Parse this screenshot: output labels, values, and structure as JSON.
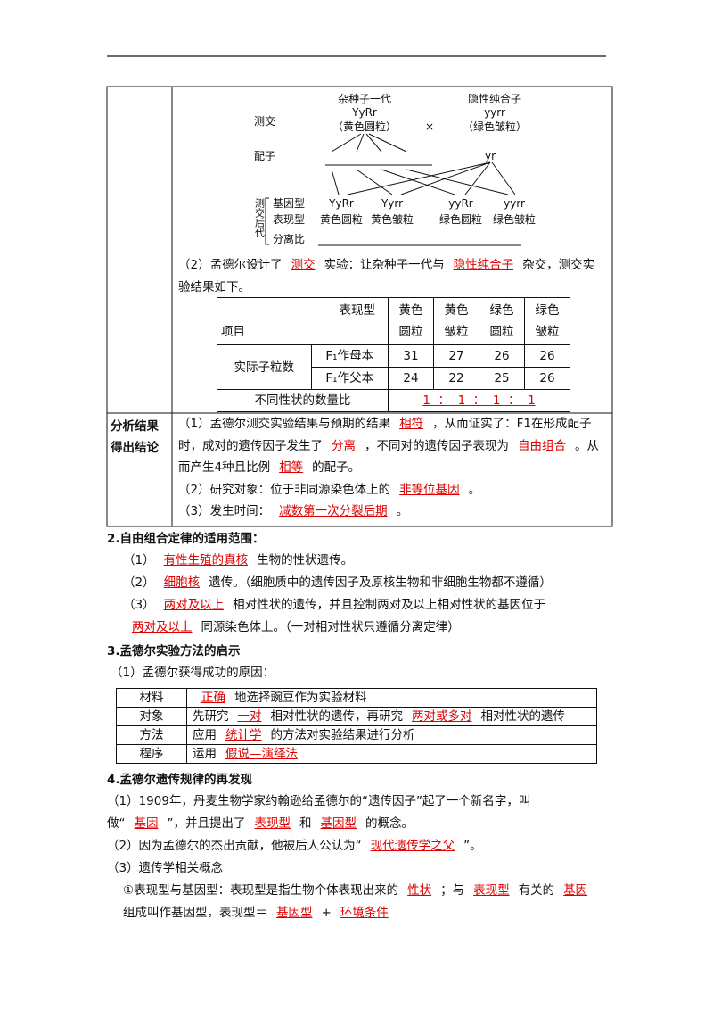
{
  "diagram": {
    "hybrid_label": "杂种子一代",
    "hybrid_genotype": "YyRr",
    "hybrid_phenotype": "（黄色圆粒）",
    "cross_sign": "×",
    "recessive_label": "隐性纯合子",
    "recessive_genotype": "yyrr",
    "recessive_phenotype": "（绿色皱粒）",
    "testcross_label": "测交",
    "gamete_label": "配子",
    "recessive_gamete": "yr",
    "offspring_label": "测交后代",
    "row_labels": [
      "基因型",
      "表现型",
      "分离比"
    ],
    "genotypes": [
      "YyRr",
      "Yyrr",
      "yyRr",
      "yyrr"
    ],
    "phenotypes": [
      "黄色圆粒",
      "黄色皱粒",
      "绿色圆粒",
      "绿色皱粒"
    ]
  },
  "experiment": {
    "paragraph": [
      "（2）孟德尔设计了",
      {
        "answer": "测交"
      },
      "实验：让杂种子一代与",
      {
        "answer": "隐性纯合子"
      },
      "杂交，测交实验结果如下。"
    ],
    "table": {
      "header_top": "表现型",
      "header_left": "项目",
      "phenotypes": [
        "黄色圆粒",
        "黄色皱粒",
        "绿色圆粒",
        "绿色皱粒"
      ],
      "row_label": "实际子粒数",
      "rows": [
        {
          "label": "F₁作母本",
          "values": [
            31,
            27,
            26,
            26
          ]
        },
        {
          "label": "F₁作父本",
          "values": [
            24,
            22,
            25,
            26
          ]
        }
      ],
      "ratio_label": "不同性状的数量比",
      "ratio": {
        "answer": "1  ：  1  ：  1  ：  1"
      }
    }
  },
  "analysis": {
    "label": "分析结果得出结论",
    "paragraphs": [
      [
        "（1）孟德尔测交实验结果与预期的结果",
        {
          "answer": "相符"
        },
        "，从而证实了：F1在形成配子时，成对的遗传因子发生了",
        {
          "answer": "分离"
        },
        "，不同对的遗传因子表现为",
        {
          "answer": "自由组合"
        },
        "。从而产生4种且比例",
        {
          "answer": "相等"
        },
        "的配子。"
      ],
      [
        "（2）研究对象：位于非同源染色体上的",
        {
          "answer": "非等位基因"
        },
        "。"
      ],
      [
        "（3）发生时间：",
        {
          "answer": "减数第一次分裂后期"
        },
        "。"
      ]
    ]
  },
  "sections": [
    {
      "title": "2.自由组合定律的适用范围：",
      "paragraphs": [
        [
          "（1）",
          {
            "answer": "有性生殖的真核"
          },
          "生物的性状遗传。"
        ],
        [
          "（2）",
          {
            "answer": "细胞核"
          },
          "遗传。（细胞质中的遗传因子及原核生物和非细胞生物都不遵循）"
        ],
        [
          "（3）",
          {
            "answer": "两对及以上"
          },
          "相对性状的遗传，并且控制两对及以上相对性状的基因位于",
          {
            "answer": "两对及以上"
          },
          "同源染色体上。（一对相对性状只遵循分离定律）"
        ]
      ]
    },
    {
      "title": "3.孟德尔实验方法的启示",
      "paragraphs": [
        [
          "（1）孟德尔获得成功的原因："
        ]
      ],
      "table": [
        {
          "label": "材料",
          "content": [
            {
              "answer": "正确"
            },
            "地选择豌豆作为实验材料"
          ]
        },
        {
          "label": "对象",
          "content": [
            "先研究",
            {
              "answer": "一对"
            },
            "相对性状的遗传，再研究",
            {
              "answer": "两对或多对"
            },
            "相对性状的遗传"
          ]
        },
        {
          "label": "方法",
          "content": [
            "应用",
            {
              "answer": "统计学"
            },
            "的方法对实验结果进行分析"
          ]
        },
        {
          "label": "程序",
          "content": [
            "运用",
            {
              "answer": "假说—演绎法"
            }
          ]
        }
      ]
    },
    {
      "title": "4.孟德尔遗传规律的再发现",
      "paragraphs": [
        [
          "（1）1909年，丹麦生物学家约翰逊给孟德尔的“遗传因子”起了一个新名字，叫做“",
          {
            "answer": "基因"
          },
          "”，并且提出了",
          {
            "answer": "表现型"
          },
          "和",
          {
            "answer": "基因型"
          },
          "的概念。"
        ],
        [
          "（2）因为孟德尔的杰出贡献，他被后人公认为“",
          {
            "answer": "现代遗传学之父"
          },
          "”。"
        ],
        [
          "（3）遗传学相关概念"
        ],
        [
          "①表现型与基因型：表现型是指生物个体表现出来的",
          {
            "answer": "性状"
          },
          "；与",
          {
            "answer": "表现型"
          },
          "有关的",
          {
            "answer": "基因"
          },
          "组成叫作基因型，表现型＝",
          {
            "answer": "基因型"
          },
          "+",
          {
            "answer": "环境条件"
          }
        ]
      ]
    }
  ]
}
